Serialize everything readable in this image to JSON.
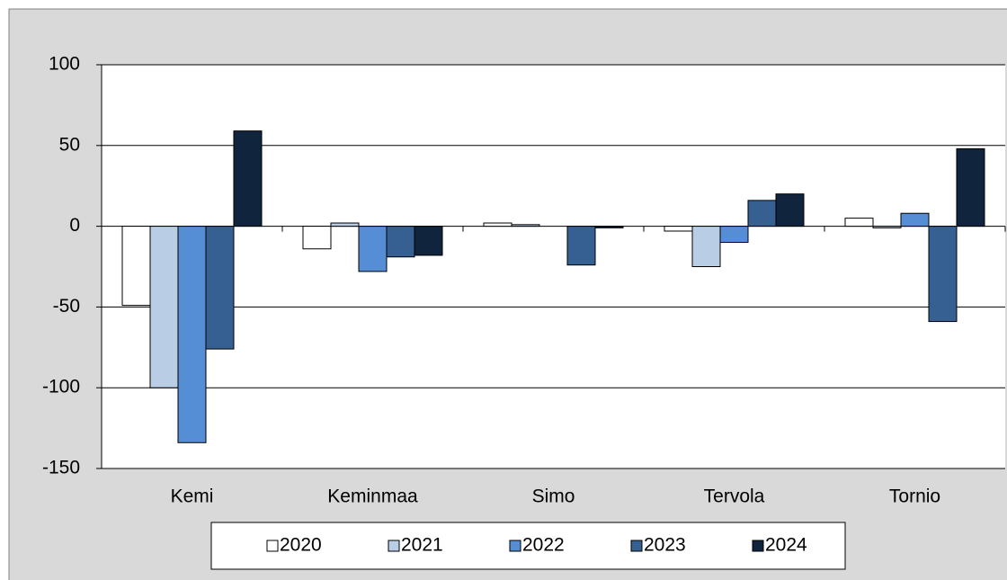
{
  "chart_data": {
    "type": "bar",
    "categories": [
      "Kemi",
      "Keminmaa",
      "Simo",
      "Tervola",
      "Tornio"
    ],
    "series": [
      {
        "name": "2020",
        "color": "#ffffff",
        "values": [
          -49,
          -14,
          2,
          -3,
          5
        ]
      },
      {
        "name": "2021",
        "color": "#b9cde5",
        "values": [
          -100,
          2,
          1,
          -25,
          -1
        ]
      },
      {
        "name": "2022",
        "color": "#558ed5",
        "values": [
          -134,
          -28,
          0,
          -10,
          8
        ]
      },
      {
        "name": "2023",
        "color": "#376092",
        "values": [
          -76,
          -19,
          -24,
          16,
          -59
        ]
      },
      {
        "name": "2024",
        "color": "#10243e",
        "values": [
          59,
          -18,
          -1,
          20,
          48
        ]
      }
    ],
    "ylim": [
      -150,
      100
    ],
    "yticks": [
      -150,
      -100,
      -50,
      0,
      50,
      100
    ],
    "grid": true,
    "legend": "bottom"
  }
}
